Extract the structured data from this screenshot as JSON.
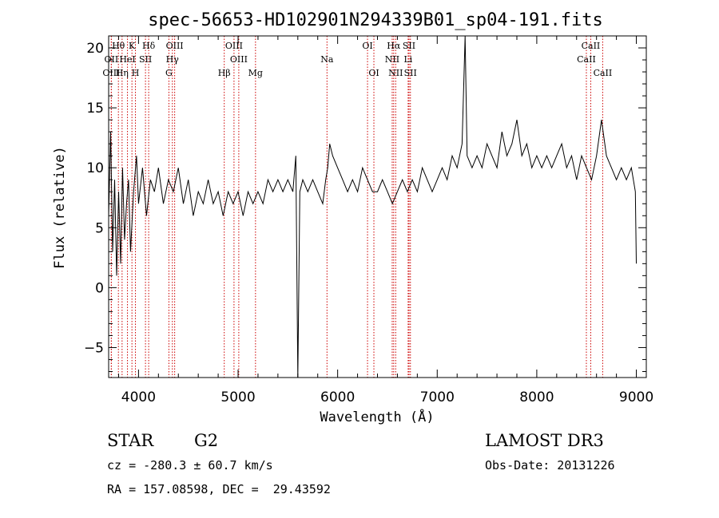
{
  "chart_data": {
    "type": "line",
    "title": "spec-56653-HD102901N294339B01_sp04-191.fits",
    "xlabel": "Wavelength (Å)",
    "ylabel": "Flux (relative)",
    "xlim": [
      3700,
      9100
    ],
    "ylim": [
      -7.5,
      21
    ],
    "xticks": [
      4000,
      5000,
      6000,
      7000,
      8000,
      9000
    ],
    "yticks": [
      -5,
      0,
      5,
      10,
      15,
      20
    ],
    "series": [
      {
        "name": "spectrum",
        "x": [
          3700,
          3720,
          3740,
          3760,
          3780,
          3800,
          3820,
          3840,
          3860,
          3880,
          3900,
          3920,
          3950,
          3980,
          4000,
          4040,
          4080,
          4120,
          4160,
          4200,
          4250,
          4300,
          4350,
          4400,
          4450,
          4500,
          4550,
          4600,
          4650,
          4700,
          4750,
          4800,
          4850,
          4900,
          4950,
          5000,
          5050,
          5100,
          5150,
          5200,
          5250,
          5300,
          5350,
          5400,
          5450,
          5500,
          5550,
          5580,
          5600,
          5620,
          5650,
          5700,
          5750,
          5800,
          5850,
          5880,
          5900,
          5920,
          5950,
          6000,
          6050,
          6100,
          6150,
          6200,
          6250,
          6300,
          6350,
          6400,
          6450,
          6500,
          6550,
          6600,
          6650,
          6700,
          6750,
          6800,
          6850,
          6900,
          6950,
          7000,
          7050,
          7100,
          7150,
          7200,
          7250,
          7280,
          7300,
          7350,
          7400,
          7450,
          7500,
          7550,
          7600,
          7650,
          7700,
          7750,
          7800,
          7850,
          7900,
          7950,
          8000,
          8050,
          8100,
          8150,
          8200,
          8250,
          8300,
          8350,
          8400,
          8450,
          8500,
          8550,
          8600,
          8650,
          8700,
          8750,
          8800,
          8850,
          8900,
          8950,
          8990,
          9000
        ],
        "y": [
          6,
          13,
          3,
          9,
          1,
          8,
          2,
          10,
          4,
          7,
          9,
          3,
          8,
          11,
          7,
          10,
          6,
          9,
          8,
          10,
          7,
          9,
          8,
          10,
          7,
          9,
          6,
          8,
          7,
          9,
          7,
          8,
          6,
          8,
          7,
          8,
          6,
          8,
          7,
          8,
          7,
          9,
          8,
          9,
          8,
          9,
          8,
          11,
          -7.5,
          8,
          9,
          8,
          9,
          8,
          7,
          9,
          10,
          12,
          11,
          10,
          9,
          8,
          9,
          8,
          10,
          9,
          8,
          8,
          9,
          8,
          7,
          8,
          9,
          8,
          9,
          8,
          10,
          9,
          8,
          9,
          10,
          9,
          11,
          10,
          12,
          21,
          11,
          10,
          11,
          10,
          12,
          11,
          10,
          13,
          11,
          12,
          14,
          11,
          12,
          10,
          11,
          10,
          11,
          10,
          11,
          12,
          10,
          11,
          9,
          11,
          10,
          9,
          11,
          14,
          11,
          10,
          9,
          10,
          9,
          10,
          8,
          2
        ]
      }
    ],
    "emission_lines": [
      {
        "label": "Hθ",
        "wave": 3798,
        "row": 1
      },
      {
        "label": "K",
        "wave": 3934,
        "row": 1
      },
      {
        "label": "Hδ",
        "wave": 4102,
        "row": 1
      },
      {
        "label": "OIII",
        "wave": 4363,
        "row": 1
      },
      {
        "label": "OIII",
        "wave": 4959,
        "row": 1
      },
      {
        "label": "Na",
        "wave": 5893,
        "row": 2
      },
      {
        "label": "OI",
        "wave": 6300,
        "row": 1
      },
      {
        "label": "Hα",
        "wave": 6563,
        "row": 1
      },
      {
        "label": "SII",
        "wave": 6717,
        "row": 1
      },
      {
        "label": "CaII",
        "wave": 8542,
        "row": 1
      },
      {
        "label": "OII",
        "wave": 3727,
        "row": 2
      },
      {
        "label": "HeI",
        "wave": 3889,
        "row": 2
      },
      {
        "label": "SII",
        "wave": 4070,
        "row": 2
      },
      {
        "label": "Hγ",
        "wave": 4340,
        "row": 2
      },
      {
        "label": "OIII",
        "wave": 5007,
        "row": 2
      },
      {
        "label": "NII",
        "wave": 6548,
        "row": 2
      },
      {
        "label": "Li",
        "wave": 6708,
        "row": 2
      },
      {
        "label": "CaII",
        "wave": 8498,
        "row": 2
      },
      {
        "label": "OIII",
        "wave": 3727,
        "row": 3
      },
      {
        "label": "Hη",
        "wave": 3835,
        "row": 3
      },
      {
        "label": "H",
        "wave": 3969,
        "row": 3
      },
      {
        "label": "G",
        "wave": 4305,
        "row": 3
      },
      {
        "label": "Hβ",
        "wave": 4861,
        "row": 3
      },
      {
        "label": "Mg",
        "wave": 5175,
        "row": 3
      },
      {
        "label": "OI",
        "wave": 6364,
        "row": 3
      },
      {
        "label": "NII",
        "wave": 6583,
        "row": 3
      },
      {
        "label": "SII",
        "wave": 6731,
        "row": 3
      },
      {
        "label": "CaII",
        "wave": 8662,
        "row": 3
      }
    ],
    "colors": {
      "spectrum": "#000000",
      "lines": "#cc0000",
      "axes": "#000000"
    }
  },
  "info": {
    "object_class": "STAR",
    "subclass": "G2",
    "survey": "LAMOST DR3",
    "redshift_line": "cz = -280.3 ± 60.7 km/s",
    "obs_date_line": "Obs-Date: 20131226",
    "coords_line": "RA = 157.08598, DEC =  29.43592"
  }
}
